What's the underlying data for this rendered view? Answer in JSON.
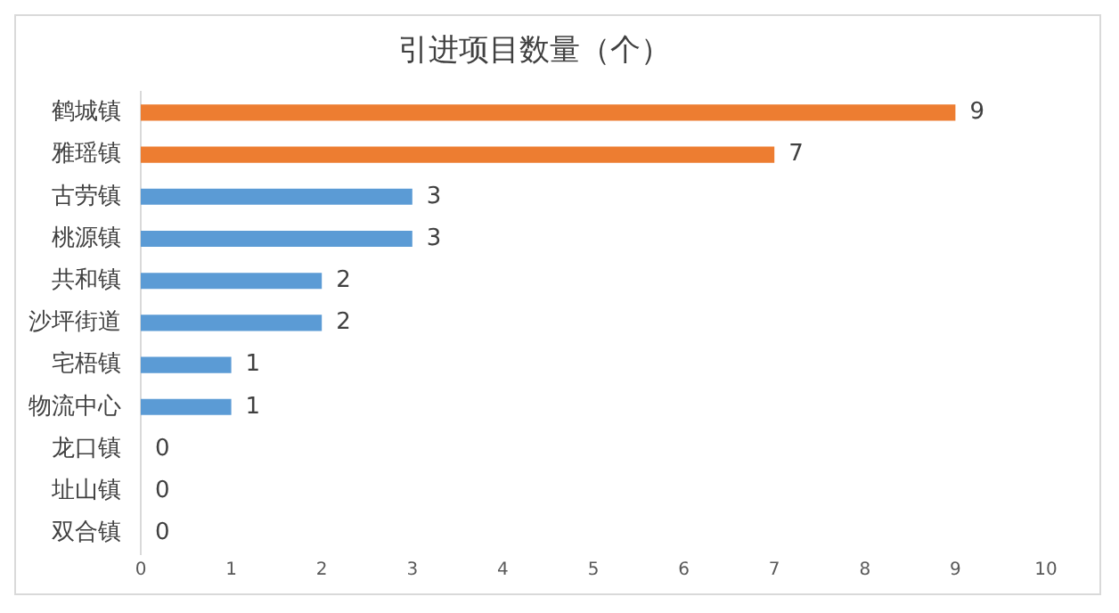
{
  "chart_data": {
    "type": "bar",
    "orientation": "horizontal",
    "title": "引进项目数量（个）",
    "categories": [
      "鹤城镇",
      "雅瑶镇",
      "古劳镇",
      "桃源镇",
      "共和镇",
      "沙坪街道",
      "宅梧镇",
      "物流中心",
      "龙口镇",
      "址山镇",
      "双合镇"
    ],
    "values": [
      9,
      7,
      3,
      3,
      2,
      2,
      1,
      1,
      0,
      0,
      0
    ],
    "colors": [
      "#ed7d31",
      "#ed7d31",
      "#5b9bd5",
      "#5b9bd5",
      "#5b9bd5",
      "#5b9bd5",
      "#5b9bd5",
      "#5b9bd5",
      "#5b9bd5",
      "#5b9bd5",
      "#5b9bd5"
    ],
    "xlim": [
      0,
      10
    ],
    "xticks": [
      0,
      1,
      2,
      3,
      4,
      5,
      6,
      7,
      8,
      9,
      10
    ],
    "grid": false,
    "data_labels": true
  }
}
